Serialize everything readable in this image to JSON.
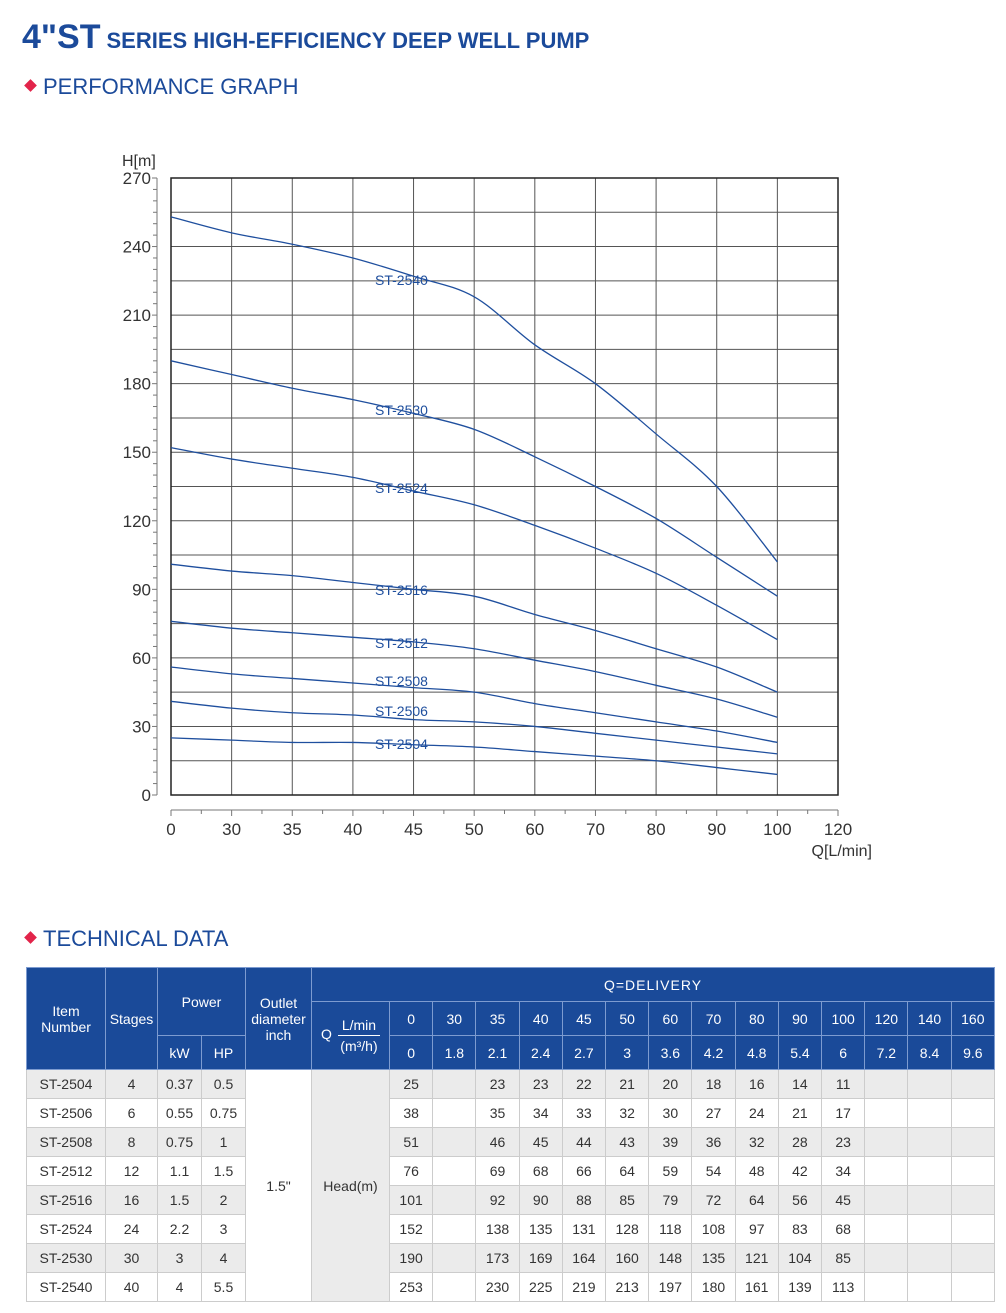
{
  "header": {
    "title_big": "4\"ST",
    "title_rest": "SERIES HIGH-EFFICIENCY DEEP WELL PUMP"
  },
  "sections": {
    "graph": "PERFORMANCE GRAPH",
    "tech": "TECHNICAL DATA"
  },
  "colors": {
    "brand": "#1b4a9a",
    "accent": "#e2244a",
    "curve": "#1f4f9e",
    "header_bg": "#1a4a99"
  },
  "chart_data": {
    "type": "line",
    "title": "PERFORMANCE GRAPH",
    "ylabel": "H[m]",
    "xlabel": "Q[L/min]",
    "x_categories": [
      "0",
      "30",
      "35",
      "40",
      "45",
      "50",
      "60",
      "70",
      "80",
      "90",
      "100",
      "120"
    ],
    "yticks": [
      0,
      30,
      60,
      90,
      120,
      150,
      180,
      210,
      240,
      270
    ],
    "ylim": [
      0,
      270
    ],
    "grid": true,
    "series": [
      {
        "name": "ST-2540",
        "values": [
          253,
          246,
          241,
          235,
          227,
          218,
          197,
          180,
          158,
          135,
          102
        ]
      },
      {
        "name": "ST-2530",
        "values": [
          190,
          184,
          178,
          173,
          167,
          160,
          148,
          135,
          121,
          104,
          87
        ]
      },
      {
        "name": "ST-2524",
        "values": [
          152,
          147,
          143,
          139,
          133,
          127,
          118,
          108,
          97,
          83,
          68
        ]
      },
      {
        "name": "ST-2516",
        "values": [
          101,
          98,
          96,
          93,
          90,
          87,
          79,
          72,
          64,
          56,
          45
        ]
      },
      {
        "name": "ST-2512",
        "values": [
          76,
          73,
          71,
          69,
          67,
          64,
          59,
          54,
          48,
          42,
          34
        ]
      },
      {
        "name": "ST-2508",
        "values": [
          56,
          53,
          51,
          49,
          47,
          45,
          40,
          36,
          32,
          28,
          23
        ]
      },
      {
        "name": "ST-2506",
        "values": [
          41,
          38,
          36,
          35,
          33,
          32,
          30,
          27,
          24,
          21,
          18
        ]
      },
      {
        "name": "ST-2504",
        "values": [
          25,
          24,
          23,
          23,
          22,
          21,
          19,
          17,
          15,
          12,
          9
        ]
      }
    ]
  },
  "table": {
    "headers": {
      "item": "Item Number",
      "stages": "Stages",
      "power": "Power",
      "kw": "kW",
      "hp": "HP",
      "outlet": "Outlet diameter inch",
      "delivery": "Q=DELIVERY",
      "q": "Q",
      "lmin": "L/min",
      "m3h": "(m³/h)"
    },
    "flow_lmin": [
      "0",
      "30",
      "35",
      "40",
      "45",
      "50",
      "60",
      "70",
      "80",
      "90",
      "100",
      "120",
      "140",
      "160"
    ],
    "flow_m3h": [
      "0",
      "1.8",
      "2.1",
      "2.4",
      "2.7",
      "3",
      "3.6",
      "4.2",
      "4.8",
      "5.4",
      "6",
      "7.2",
      "8.4",
      "9.6"
    ],
    "outlet_value": "1.5\"",
    "head_label": "Head(m)",
    "rows": [
      {
        "item": "ST-2504",
        "stages": "4",
        "kw": "0.37",
        "hp": "0.5",
        "heads": [
          "25",
          "",
          "23",
          "23",
          "22",
          "21",
          "20",
          "18",
          "16",
          "14",
          "11",
          "",
          "",
          ""
        ]
      },
      {
        "item": "ST-2506",
        "stages": "6",
        "kw": "0.55",
        "hp": "0.75",
        "heads": [
          "38",
          "",
          "35",
          "34",
          "33",
          "32",
          "30",
          "27",
          "24",
          "21",
          "17",
          "",
          "",
          ""
        ]
      },
      {
        "item": "ST-2508",
        "stages": "8",
        "kw": "0.75",
        "hp": "1",
        "heads": [
          "51",
          "",
          "46",
          "45",
          "44",
          "43",
          "39",
          "36",
          "32",
          "28",
          "23",
          "",
          "",
          ""
        ]
      },
      {
        "item": "ST-2512",
        "stages": "12",
        "kw": "1.1",
        "hp": "1.5",
        "heads": [
          "76",
          "",
          "69",
          "68",
          "66",
          "64",
          "59",
          "54",
          "48",
          "42",
          "34",
          "",
          "",
          ""
        ]
      },
      {
        "item": "ST-2516",
        "stages": "16",
        "kw": "1.5",
        "hp": "2",
        "heads": [
          "101",
          "",
          "92",
          "90",
          "88",
          "85",
          "79",
          "72",
          "64",
          "56",
          "45",
          "",
          "",
          ""
        ]
      },
      {
        "item": "ST-2524",
        "stages": "24",
        "kw": "2.2",
        "hp": "3",
        "heads": [
          "152",
          "",
          "138",
          "135",
          "131",
          "128",
          "118",
          "108",
          "97",
          "83",
          "68",
          "",
          "",
          ""
        ]
      },
      {
        "item": "ST-2530",
        "stages": "30",
        "kw": "3",
        "hp": "4",
        "heads": [
          "190",
          "",
          "173",
          "169",
          "164",
          "160",
          "148",
          "135",
          "121",
          "104",
          "85",
          "",
          "",
          ""
        ]
      },
      {
        "item": "ST-2540",
        "stages": "40",
        "kw": "4",
        "hp": "5.5",
        "heads": [
          "253",
          "",
          "230",
          "225",
          "219",
          "213",
          "197",
          "180",
          "161",
          "139",
          "113",
          "",
          "",
          ""
        ]
      }
    ]
  }
}
